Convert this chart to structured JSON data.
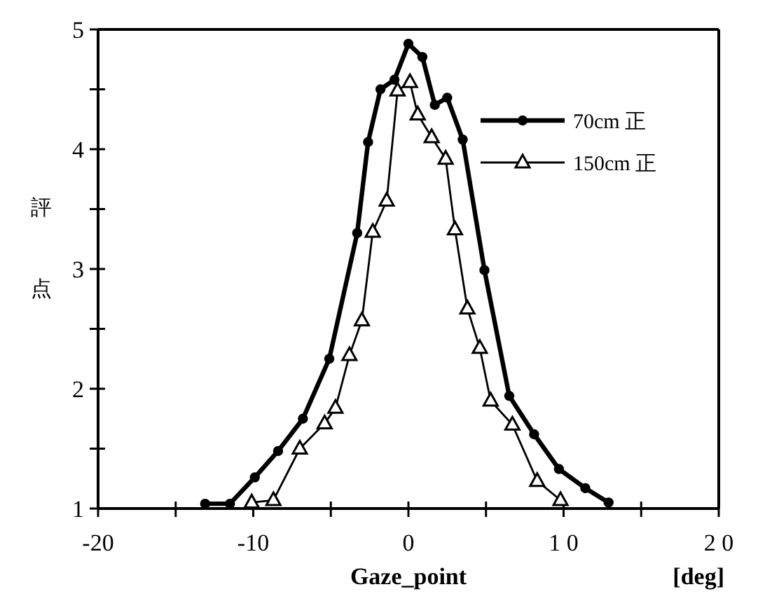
{
  "chart_data": {
    "type": "line",
    "xlabel": "Gaze_point",
    "ylabel": "評点",
    "annotations": [
      "[deg]"
    ],
    "xlim": [
      -20,
      20
    ],
    "ylim": [
      1,
      5
    ],
    "xticks": [
      -20,
      {
        "value": -15,
        "label": null
      },
      -10,
      {
        "value": -5,
        "label": null
      },
      0,
      {
        "value": 5,
        "label": null
      },
      {
        "value": 10,
        "label": "1 0"
      },
      {
        "value": 15,
        "label": null
      },
      {
        "value": 20,
        "label": "2 0"
      }
    ],
    "yticks": [
      1,
      {
        "value": 1.5,
        "label": null
      },
      2,
      {
        "value": 2.5,
        "label": null
      },
      3,
      {
        "value": 3.5,
        "label": null
      },
      4,
      {
        "value": 4.5,
        "label": null
      },
      5
    ],
    "legend": "top right",
    "grid": false,
    "line_style": "solid",
    "series": [
      {
        "name": "70cm 正",
        "color": "#000000",
        "marker": "circle",
        "x": [
          -13.1,
          -11.5,
          -9.9,
          -8.4,
          -6.8,
          -5.1,
          -3.3,
          -2.6,
          -1.8,
          -0.9,
          0,
          0.9,
          1.7,
          2.5,
          3.5,
          4.9,
          6.5,
          8.1,
          9.7,
          11.4,
          12.9
        ],
        "values": [
          1.04,
          1.04,
          1.26,
          1.48,
          1.75,
          2.25,
          3.3,
          4.06,
          4.5,
          4.58,
          4.88,
          4.77,
          4.37,
          4.43,
          4.08,
          2.99,
          1.94,
          1.62,
          1.33,
          1.17,
          1.05
        ]
      },
      {
        "name": "150cm 正",
        "color": "#000000",
        "marker": "triangle",
        "x": [
          -10.1,
          -8.7,
          -7.0,
          -5.4,
          -4.7,
          -3.8,
          -3.0,
          -2.3,
          -1.4,
          -0.7,
          0.1,
          0.6,
          1.5,
          2.4,
          3.0,
          3.8,
          4.6,
          5.3,
          6.7,
          8.3,
          9.8
        ],
        "values": [
          1.05,
          1.07,
          1.5,
          1.71,
          1.84,
          2.28,
          2.57,
          3.31,
          3.57,
          4.49,
          4.56,
          4.29,
          4.1,
          3.92,
          3.33,
          2.67,
          2.34,
          1.9,
          1.7,
          1.23,
          1.07
        ]
      }
    ]
  }
}
